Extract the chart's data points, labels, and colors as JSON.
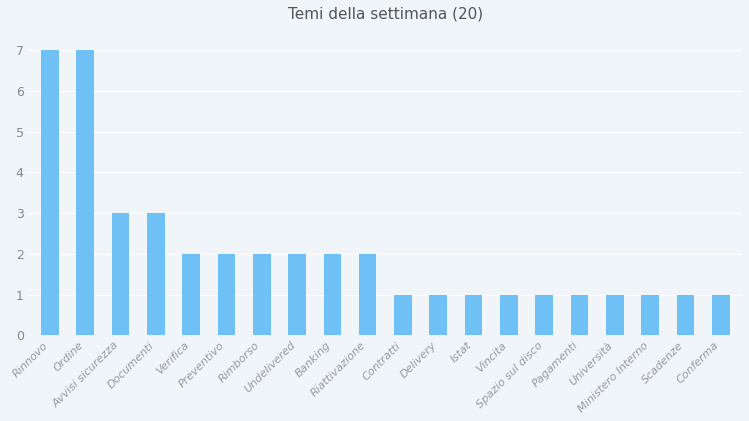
{
  "title": "Temi della settimana (20)",
  "categories": [
    "Rinnovo",
    "Ordine",
    "Avvisi sicurezza",
    "Documenti",
    "Verifica",
    "Preventivo",
    "Rimborso",
    "Undelivered",
    "Banking",
    "Riattivazione",
    "Contratti",
    "Delivery",
    "Istat",
    "Vincita",
    "Spazio sul disco",
    "Pagamenti",
    "Università",
    "Ministero Interno",
    "Scadenze",
    "Conferma"
  ],
  "values": [
    7,
    7,
    3,
    3,
    2,
    2,
    2,
    2,
    2,
    2,
    1,
    1,
    1,
    1,
    1,
    1,
    1,
    1,
    1,
    1
  ],
  "bar_color": "#6ec0f5",
  "background_color": "#f0f5fa",
  "grid_color": "#ffffff",
  "title_fontsize": 11,
  "tick_fontsize": 8,
  "ylim": [
    0,
    7.5
  ],
  "yticks": [
    0,
    1,
    2,
    3,
    4,
    5,
    6,
    7
  ]
}
